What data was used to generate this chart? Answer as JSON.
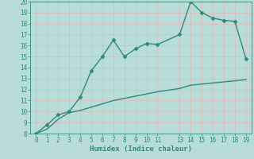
{
  "title": "",
  "xlabel": "Humidex (Indice chaleur)",
  "x_line1": [
    0,
    1,
    2,
    3,
    4,
    5,
    6,
    7,
    8,
    9,
    10,
    11,
    13,
    14,
    15,
    16,
    17,
    18,
    19
  ],
  "y_line1": [
    8,
    8.8,
    9.7,
    10.0,
    11.3,
    13.7,
    15.0,
    16.5,
    15.0,
    15.7,
    16.2,
    16.1,
    17.0,
    20.0,
    19.0,
    18.5,
    18.3,
    18.2,
    14.8
  ],
  "x_line2": [
    0,
    1,
    2,
    3,
    4,
    5,
    6,
    7,
    8,
    9,
    10,
    11,
    13,
    14,
    15,
    16,
    17,
    18,
    19
  ],
  "y_line2": [
    8.0,
    8.4,
    9.3,
    9.9,
    10.1,
    10.4,
    10.7,
    11.0,
    11.2,
    11.4,
    11.6,
    11.8,
    12.1,
    12.4,
    12.5,
    12.6,
    12.7,
    12.8,
    12.9
  ],
  "line_color": "#2e8b7a",
  "bg_color": "#b8ddd8",
  "grid_color": "#ddbcbc",
  "ylim": [
    8,
    20
  ],
  "xlim": [
    -0.5,
    19.5
  ],
  "yticks": [
    8,
    9,
    10,
    11,
    12,
    13,
    14,
    15,
    16,
    17,
    18,
    19,
    20
  ],
  "xticks": [
    0,
    1,
    2,
    3,
    4,
    5,
    6,
    7,
    8,
    9,
    10,
    11,
    13,
    14,
    15,
    16,
    17,
    18,
    19
  ],
  "marker": "D",
  "markersize": 2.5,
  "linewidth": 1.0,
  "label_fontsize": 6.5,
  "tick_fontsize": 5.5
}
